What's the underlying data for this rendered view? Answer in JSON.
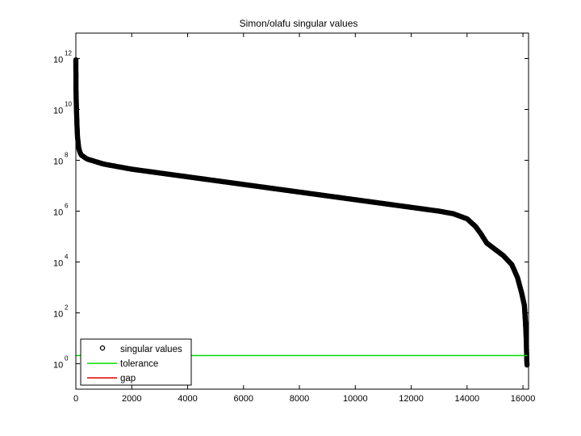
{
  "chart_data": {
    "type": "scatter",
    "title": "Simon/olafu singular values",
    "xlabel": "",
    "ylabel": "",
    "xlim": [
      0,
      16200
    ],
    "ylim_log10": [
      -1,
      13
    ],
    "yscale": "log",
    "grid": false,
    "x_ticks": [
      "0",
      "2000",
      "4000",
      "6000",
      "8000",
      "10000",
      "12000",
      "14000",
      "16000"
    ],
    "y_ticks": [
      {
        "base": "10",
        "exp": "0"
      },
      {
        "base": "10",
        "exp": "2"
      },
      {
        "base": "10",
        "exp": "4"
      },
      {
        "base": "10",
        "exp": "6"
      },
      {
        "base": "10",
        "exp": "8"
      },
      {
        "base": "10",
        "exp": "10"
      },
      {
        "base": "10",
        "exp": "12"
      }
    ],
    "legend": {
      "position": "bottom-left",
      "entries": [
        {
          "label": "singular values",
          "marker": "circle",
          "color": "#000000"
        },
        {
          "label": "tolerance",
          "marker": "line",
          "color": "#00dd00"
        },
        {
          "label": "gap",
          "marker": "line",
          "color": "#dd0000"
        }
      ]
    },
    "series": [
      {
        "name": "singular values",
        "color": "#000000",
        "marker": "circle",
        "x": [
          1,
          2,
          5,
          10,
          20,
          40,
          60,
          100,
          150,
          200,
          400,
          700,
          1000,
          1500,
          2000,
          3000,
          4000,
          5000,
          6000,
          7000,
          8000,
          9000,
          10000,
          11000,
          12000,
          13000,
          13500,
          14000,
          14300,
          14500,
          14700,
          15000,
          15300,
          15600,
          15800,
          15950,
          16050,
          16080,
          16100,
          16120,
          16130,
          16140,
          16146
        ],
        "log10_y": [
          11.95,
          10.9,
          10.7,
          10.55,
          10.05,
          9.4,
          8.9,
          8.5,
          8.3,
          8.2,
          8.05,
          7.95,
          7.85,
          7.75,
          7.65,
          7.5,
          7.35,
          7.2,
          7.05,
          6.9,
          6.75,
          6.6,
          6.45,
          6.3,
          6.15,
          6.0,
          5.9,
          5.7,
          5.4,
          5.1,
          4.75,
          4.5,
          4.25,
          3.9,
          3.4,
          2.8,
          2.3,
          1.8,
          1.4,
          0.9,
          0.4,
          0.05,
          -0.05
        ]
      },
      {
        "name": "tolerance",
        "color": "#00dd00",
        "x": [
          0,
          16146
        ],
        "log10_y": [
          0.32,
          0.32
        ]
      },
      {
        "name": "gap",
        "color": "#dd0000",
        "x": [
          16146,
          16146
        ],
        "log10_y": [
          0.32,
          0.32
        ]
      }
    ]
  }
}
